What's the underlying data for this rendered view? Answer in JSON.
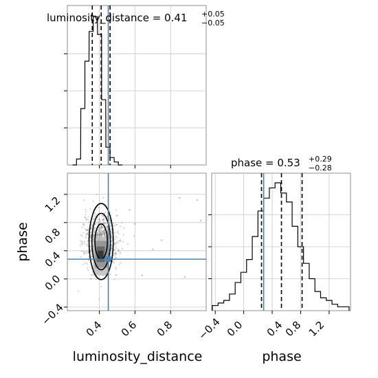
{
  "chart_data": [
    {
      "type": "histogram",
      "panel": "luminosity_distance-marginal",
      "title": {
        "base": "luminosity_distance = 0.41",
        "plus": "+0.05",
        "minus": "−0.05"
      },
      "x": [
        0.26,
        0.283,
        0.307,
        0.33,
        0.354,
        0.377,
        0.401,
        0.424,
        0.448,
        0.471,
        0.495,
        0.518
      ],
      "counts": [
        0.0,
        0.04,
        0.38,
        0.7,
        0.9,
        1.0,
        0.88,
        0.44,
        0.12,
        0.05,
        0.02,
        0.0
      ],
      "quantile_lines": [
        0.36,
        0.41,
        0.46
      ],
      "true_value": 0.45,
      "xlim": [
        0.22,
        1.0
      ],
      "grid": true
    },
    {
      "type": "histogram",
      "panel": "phase-marginal",
      "title": {
        "base": "phase = 0.53",
        "plus": "+0.29",
        "minus": "−0.28"
      },
      "x": [
        -0.4,
        -0.32,
        -0.24,
        -0.16,
        -0.08,
        0.0,
        0.08,
        0.16,
        0.24,
        0.32,
        0.4,
        0.48,
        0.56,
        0.64,
        0.72,
        0.8,
        0.88,
        0.96,
        1.04,
        1.12,
        1.2,
        1.28,
        1.36,
        1.44
      ],
      "counts": [
        0.04,
        0.06,
        0.08,
        0.13,
        0.22,
        0.3,
        0.4,
        0.58,
        0.78,
        0.88,
        0.96,
        1.0,
        0.92,
        0.85,
        0.66,
        0.5,
        0.37,
        0.25,
        0.15,
        0.1,
        0.08,
        0.05,
        0.03,
        0.03
      ],
      "quantile_lines": [
        0.25,
        0.53,
        0.82
      ],
      "true_value": 0.28,
      "xlim": [
        -0.45,
        1.5
      ],
      "grid": true
    },
    {
      "type": "scatter",
      "panel": "phase-vs-luminosity_distance",
      "xlabel": "luminosity_distance",
      "ylabel": "phase",
      "xlim": [
        0.22,
        1.0
      ],
      "ylim": [
        -0.45,
        1.5
      ],
      "density_center": {
        "x": 0.41,
        "y": 0.53
      },
      "density_spread": {
        "x": 0.05,
        "y": 0.28
      },
      "outliers": [
        {
          "x": 0.6,
          "y": 0.78
        },
        {
          "x": 0.64,
          "y": 0.05
        },
        {
          "x": 0.7,
          "y": 0.42
        },
        {
          "x": 0.75,
          "y": 0.55
        },
        {
          "x": 0.85,
          "y": 1.15
        },
        {
          "x": 0.88,
          "y": 0.03
        },
        {
          "x": 0.97,
          "y": 0.83
        },
        {
          "x": 0.95,
          "y": 1.12
        },
        {
          "x": 0.57,
          "y": 0.98
        }
      ],
      "contour_levels": [
        {
          "rx": 0.035,
          "ry": 0.25
        },
        {
          "rx": 0.052,
          "ry": 0.4
        },
        {
          "rx": 0.068,
          "ry": 0.54
        }
      ],
      "truth": {
        "x": 0.45,
        "y": 0.28
      },
      "grid": true
    }
  ],
  "axes": {
    "x_ticks_dist": [
      "0.4",
      "0.6",
      "0.8"
    ],
    "x_ticks_phase": [
      "−0.4",
      "0.0",
      "0.4",
      "0.8",
      "1.2"
    ],
    "y_ticks_phase": [
      "−0.4",
      "0.0",
      "0.4",
      "0.8",
      "1.2"
    ],
    "xlabel_left": "luminosity_distance",
    "xlabel_right": "phase",
    "ylabel_left": "phase"
  },
  "colors": {
    "truth": "#4682b4",
    "hist": "#000000",
    "grid": "#c8c8c8",
    "scatter": "#7f7f7f"
  }
}
